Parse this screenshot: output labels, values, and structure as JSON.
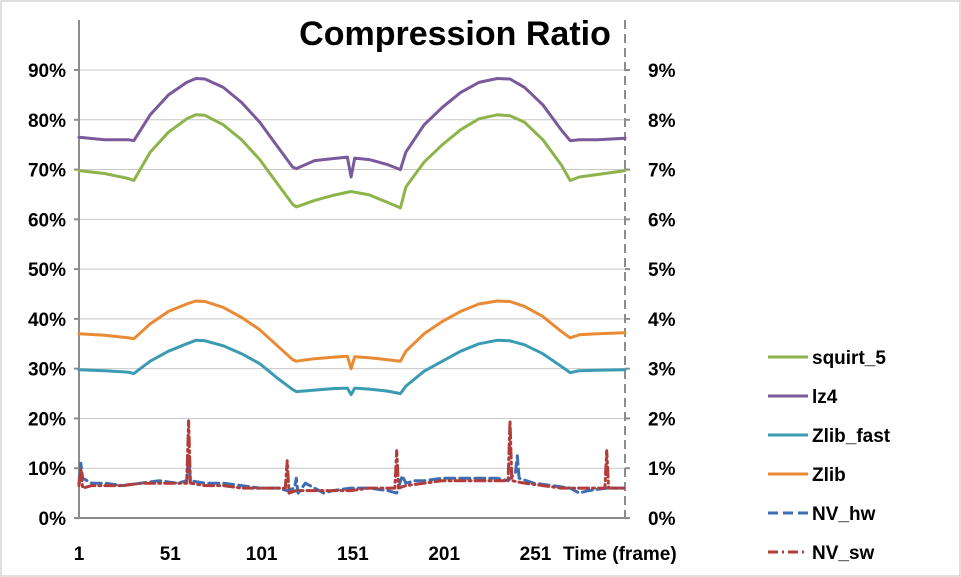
{
  "chart_data": {
    "type": "line",
    "title": "Compression Ratio",
    "xlabel": "Time (frame)",
    "ylabel": "",
    "x_ticks": [
      "1",
      "51",
      "101",
      "151",
      "201",
      "251"
    ],
    "x_tick_values": [
      1,
      51,
      101,
      151,
      201,
      251
    ],
    "xlim": [
      1,
      300
    ],
    "ylim": [
      0,
      90
    ],
    "y_left_ticks": [
      "0%",
      "10%",
      "20%",
      "30%",
      "40%",
      "50%",
      "60%",
      "70%",
      "80%",
      "90%"
    ],
    "y_right_ticks": [
      "0%",
      "1%",
      "2%",
      "3%",
      "4%",
      "5%",
      "6%",
      "7%",
      "8%",
      "9%"
    ],
    "y_tick_values": [
      0,
      10,
      20,
      30,
      40,
      50,
      60,
      70,
      80,
      90
    ],
    "grid": "horizontal",
    "legend_position": "right",
    "series": [
      {
        "name": "squirt_5",
        "axis": "left",
        "color": "#8db34a",
        "dash": "solid",
        "x": [
          1,
          15,
          28,
          31,
          40,
          50,
          60,
          65,
          70,
          80,
          90,
          100,
          110,
          118,
          120,
          130,
          140,
          150,
          160,
          170,
          177,
          180,
          190,
          200,
          210,
          220,
          230,
          237,
          245,
          255,
          265,
          270,
          275,
          285,
          300
        ],
        "y": [
          69.8,
          69.2,
          68.2,
          67.8,
          73.5,
          77.5,
          80.2,
          81.0,
          80.9,
          79.0,
          76.0,
          72.0,
          67.0,
          63.0,
          62.5,
          63.8,
          64.8,
          65.6,
          64.9,
          63.4,
          62.3,
          66.5,
          71.5,
          75.0,
          78.0,
          80.2,
          81.0,
          80.8,
          79.5,
          76.0,
          71.0,
          67.8,
          68.5,
          69.0,
          69.8
        ]
      },
      {
        "name": "lz4",
        "axis": "left",
        "color": "#7a5a9c",
        "dash": "solid",
        "x": [
          1,
          15,
          28,
          31,
          40,
          50,
          60,
          65,
          70,
          80,
          90,
          100,
          110,
          118,
          120,
          130,
          140,
          148,
          150,
          152,
          160,
          170,
          177,
          180,
          190,
          200,
          210,
          220,
          230,
          237,
          245,
          255,
          265,
          270,
          275,
          285,
          300
        ],
        "y": [
          76.5,
          76.0,
          76.0,
          75.8,
          81.0,
          85.0,
          87.5,
          88.3,
          88.2,
          86.5,
          83.5,
          79.5,
          74.5,
          70.5,
          70.2,
          71.8,
          72.2,
          72.5,
          68.5,
          72.3,
          72.0,
          71.0,
          70.0,
          73.5,
          79.0,
          82.5,
          85.5,
          87.5,
          88.3,
          88.2,
          86.5,
          83.0,
          78.0,
          75.8,
          76.0,
          76.0,
          76.3
        ]
      },
      {
        "name": "Zlib_fast",
        "axis": "left",
        "color": "#3a9bb2",
        "dash": "solid",
        "x": [
          1,
          15,
          28,
          31,
          40,
          50,
          60,
          65,
          70,
          80,
          90,
          100,
          110,
          118,
          120,
          130,
          140,
          148,
          150,
          152,
          160,
          170,
          177,
          180,
          190,
          200,
          210,
          220,
          230,
          237,
          245,
          255,
          265,
          270,
          275,
          285,
          300
        ],
        "y": [
          29.8,
          29.6,
          29.3,
          29.0,
          31.5,
          33.5,
          35.0,
          35.7,
          35.6,
          34.6,
          33.0,
          31.0,
          28.0,
          25.8,
          25.4,
          25.7,
          26.0,
          26.1,
          24.8,
          26.1,
          25.9,
          25.5,
          25.0,
          26.5,
          29.5,
          31.5,
          33.5,
          35.0,
          35.7,
          35.6,
          34.8,
          33.0,
          30.5,
          29.2,
          29.6,
          29.7,
          29.8
        ]
      },
      {
        "name": "Zlib",
        "axis": "left",
        "color": "#e98a35",
        "dash": "solid",
        "x": [
          1,
          15,
          28,
          31,
          40,
          50,
          60,
          65,
          70,
          80,
          90,
          100,
          110,
          118,
          120,
          130,
          140,
          148,
          150,
          152,
          160,
          170,
          177,
          180,
          190,
          200,
          210,
          220,
          230,
          237,
          245,
          255,
          265,
          270,
          275,
          285,
          300
        ],
        "y": [
          37.0,
          36.7,
          36.2,
          36.0,
          39.0,
          41.5,
          43.0,
          43.6,
          43.5,
          42.3,
          40.3,
          37.8,
          34.5,
          31.8,
          31.5,
          32.0,
          32.3,
          32.5,
          30.0,
          32.4,
          32.2,
          31.8,
          31.5,
          33.5,
          37.0,
          39.5,
          41.5,
          43.0,
          43.6,
          43.5,
          42.5,
          40.5,
          37.5,
          36.2,
          36.8,
          37.0,
          37.2
        ]
      },
      {
        "name": "NV_hw",
        "axis": "right",
        "color": "#3d6eb4",
        "dash": "dash",
        "x": [
          1,
          2,
          3,
          8,
          15,
          25,
          35,
          45,
          55,
          60,
          61,
          62,
          70,
          80,
          90,
          100,
          110,
          115,
          119,
          120,
          121,
          125,
          130,
          135,
          140,
          150,
          160,
          170,
          175,
          178,
          180,
          185,
          190,
          200,
          210,
          220,
          230,
          236,
          240,
          241,
          242,
          250,
          260,
          270,
          275,
          280,
          290,
          300
        ],
        "y": [
          0.7,
          1.1,
          0.8,
          0.7,
          0.7,
          0.65,
          0.7,
          0.75,
          0.7,
          0.75,
          1.25,
          0.75,
          0.7,
          0.7,
          0.65,
          0.6,
          0.6,
          0.55,
          0.6,
          0.8,
          0.5,
          0.7,
          0.6,
          0.5,
          0.55,
          0.6,
          0.6,
          0.55,
          0.5,
          0.85,
          0.7,
          0.75,
          0.75,
          0.8,
          0.8,
          0.8,
          0.8,
          0.75,
          0.9,
          1.25,
          0.8,
          0.7,
          0.65,
          0.6,
          0.5,
          0.55,
          0.6,
          0.6
        ]
      },
      {
        "name": "NV_sw",
        "axis": "right",
        "color": "#b23c3a",
        "dash": "dashdot",
        "x": [
          1,
          2,
          3,
          8,
          15,
          25,
          35,
          45,
          55,
          60,
          61,
          62,
          70,
          80,
          90,
          100,
          110,
          114,
          115,
          116,
          120,
          130,
          140,
          150,
          160,
          170,
          174,
          175,
          176,
          180,
          190,
          200,
          210,
          220,
          230,
          236,
          237,
          238,
          245,
          255,
          265,
          275,
          285,
          289,
          290,
          291,
          295,
          300
        ],
        "y": [
          0.65,
          1.0,
          0.6,
          0.65,
          0.65,
          0.65,
          0.7,
          0.7,
          0.7,
          0.7,
          1.95,
          0.7,
          0.65,
          0.65,
          0.6,
          0.6,
          0.6,
          0.6,
          1.15,
          0.5,
          0.55,
          0.55,
          0.55,
          0.55,
          0.6,
          0.6,
          0.6,
          1.35,
          0.6,
          0.65,
          0.7,
          0.75,
          0.75,
          0.75,
          0.75,
          0.75,
          1.95,
          0.75,
          0.7,
          0.65,
          0.6,
          0.6,
          0.6,
          0.6,
          1.35,
          0.6,
          0.6,
          0.6
        ]
      }
    ]
  }
}
